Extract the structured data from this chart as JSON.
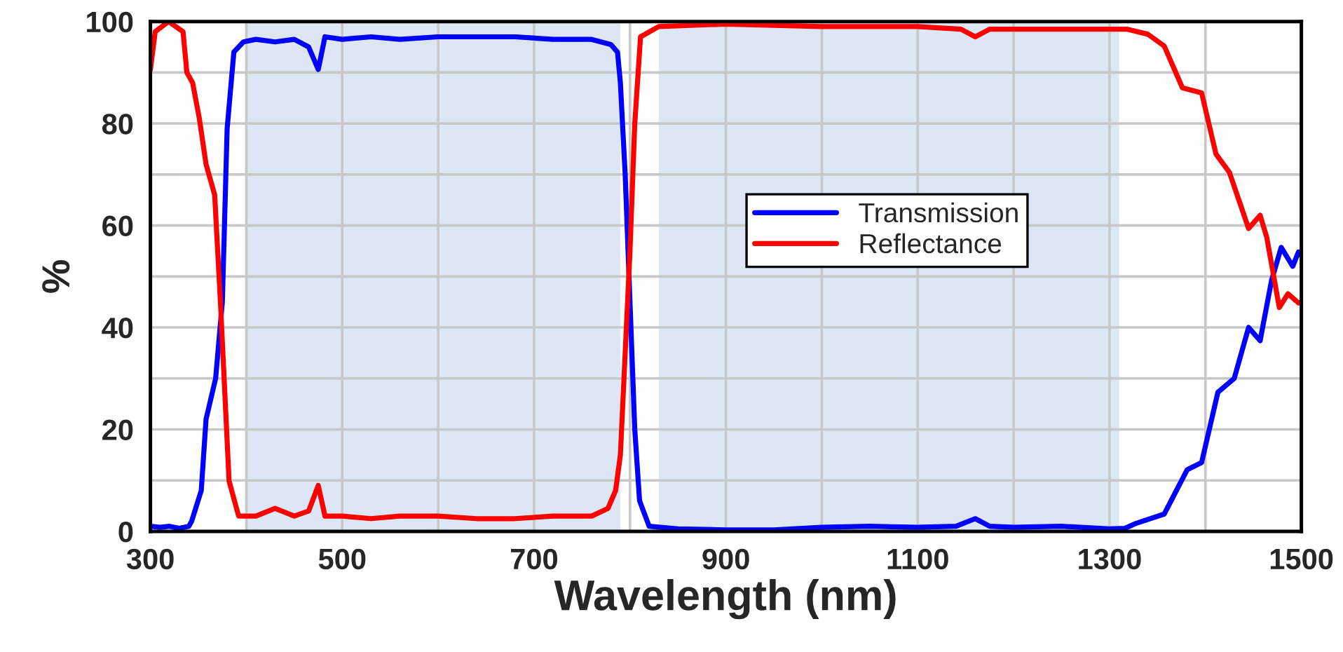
{
  "chart_data": {
    "type": "line",
    "xlabel": "Wavelength (nm)",
    "ylabel": "%",
    "xlim": [
      300,
      1500
    ],
    "ylim": [
      0,
      100
    ],
    "xticks": [
      300,
      {
        "value": 400,
        "label": null
      },
      500,
      {
        "value": 600,
        "label": null
      },
      700,
      {
        "value": 800,
        "label": null
      },
      900,
      {
        "value": 1000,
        "label": null
      },
      1100,
      {
        "value": 1200,
        "label": null
      },
      1300,
      {
        "value": 1400,
        "label": null
      },
      1500
    ],
    "yticks": [
      0,
      {
        "value": 10,
        "label": null
      },
      20,
      {
        "value": 30,
        "label": null
      },
      40,
      {
        "value": 50,
        "label": null
      },
      60,
      {
        "value": 70,
        "label": null
      },
      80,
      {
        "value": 90,
        "label": null
      },
      100
    ],
    "grid": true,
    "legend": "center",
    "line_style": "solid",
    "marker": "none",
    "bands": [
      {
        "axis": "x",
        "from": 400,
        "to": 790,
        "color": "#dce6f5"
      },
      {
        "axis": "x",
        "from": 830,
        "to": 1310,
        "color": "#dce6f5"
      }
    ],
    "series": [
      {
        "name": "Transmission",
        "color": "#0000ff",
        "x": [
          300,
          310,
          320,
          330,
          340,
          343,
          353,
          358,
          368,
          375,
          380,
          387,
          397,
          410,
          430,
          450,
          465,
          475,
          482,
          500,
          530,
          560,
          600,
          640,
          680,
          720,
          760,
          780,
          787,
          790,
          795,
          800,
          805,
          810,
          820,
          850,
          900,
          950,
          1000,
          1050,
          1100,
          1140,
          1160,
          1175,
          1200,
          1250,
          1300,
          1316,
          1328,
          1357,
          1381,
          1396,
          1413,
          1430,
          1445,
          1457,
          1469,
          1479,
          1491,
          1497,
          1500
        ],
        "values": [
          1,
          0.8,
          1,
          0.6,
          1,
          2,
          8,
          22,
          30,
          45,
          79,
          94,
          96,
          96.5,
          96,
          96.5,
          95,
          90.6,
          97,
          96.5,
          97,
          96.5,
          97,
          97,
          97,
          96.5,
          96.5,
          95.5,
          94,
          88,
          70,
          45,
          20,
          6,
          1,
          0.5,
          0.3,
          0.3,
          0.8,
          1,
          0.8,
          1,
          2.5,
          1,
          0.8,
          1,
          0.5,
          0.6,
          1.6,
          3.4,
          12.1,
          13.5,
          27.3,
          30,
          40,
          37.4,
          49.3,
          55.7,
          52,
          54.8,
          54
        ]
      },
      {
        "name": "Reflectance",
        "color": "#ff0000",
        "x": [
          300,
          305,
          319,
          334,
          338,
          344,
          351,
          358,
          367,
          373,
          382,
          392,
          410,
          430,
          450,
          465,
          475,
          482,
          500,
          530,
          560,
          600,
          640,
          680,
          720,
          760,
          777,
          785,
          790,
          795,
          800,
          805,
          811,
          830,
          900,
          1000,
          1100,
          1145,
          1160,
          1175,
          1200,
          1250,
          1318,
          1340,
          1357,
          1376,
          1396,
          1411,
          1425,
          1445,
          1457,
          1464,
          1477,
          1486,
          1497,
          1500
        ],
        "values": [
          90.6,
          98,
          100,
          98,
          90,
          88,
          81,
          72,
          66,
          45,
          9.9,
          3,
          3,
          4.5,
          3,
          4,
          9,
          3,
          3,
          2.5,
          3,
          3,
          2.5,
          2.5,
          3,
          3,
          4.5,
          8,
          15,
          35,
          55,
          80,
          97,
          99,
          99.5,
          99,
          99,
          98.5,
          97,
          98.5,
          98.5,
          98.5,
          98.5,
          97.5,
          95.2,
          87,
          86,
          74,
          70.4,
          59.4,
          62,
          57.6,
          43.9,
          46.6,
          44.8,
          45
        ]
      }
    ]
  }
}
